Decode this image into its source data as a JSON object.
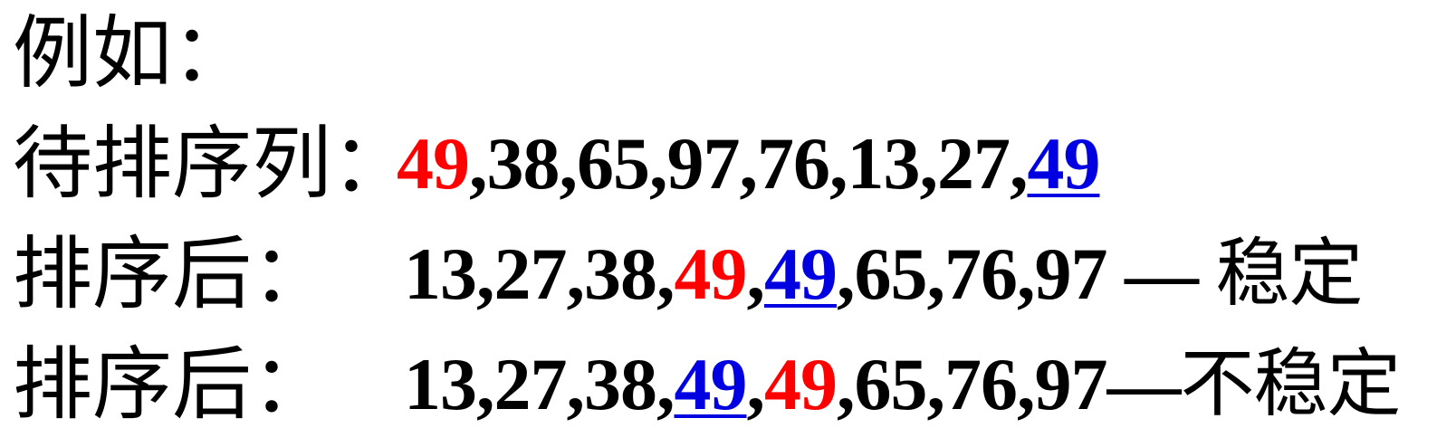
{
  "heading": "例如：",
  "rows": [
    {
      "label": "待排序列：",
      "parts": [
        {
          "text": "49",
          "color": "red"
        },
        {
          "text": ",38,65,97,76,13,27,",
          "color": "black"
        },
        {
          "text": "49",
          "color": "blue-underline"
        }
      ]
    },
    {
      "label": "排序后：",
      "parts": [
        {
          "text": "13,27,38,",
          "color": "black"
        },
        {
          "text": "49",
          "color": "red"
        },
        {
          "text": ",",
          "color": "black"
        },
        {
          "text": "49",
          "color": "blue-underline"
        },
        {
          "text": ",65,76,97 ",
          "color": "black"
        },
        {
          "text": "— ",
          "color": "black"
        },
        {
          "text": "稳定",
          "color": "black"
        }
      ]
    },
    {
      "label": "排序后：",
      "parts": [
        {
          "text": "13,27,38,",
          "color": "black"
        },
        {
          "text": "49",
          "color": "blue-underline"
        },
        {
          "text": ",",
          "color": "black"
        },
        {
          "text": "49",
          "color": "red"
        },
        {
          "text": ",65,76,97",
          "color": "black"
        },
        {
          "text": "—",
          "color": "black"
        },
        {
          "text": "不稳定",
          "color": "black"
        }
      ]
    }
  ],
  "colors": {
    "red": "#ff0000",
    "blue": "#0000e0",
    "text": "#000000"
  }
}
